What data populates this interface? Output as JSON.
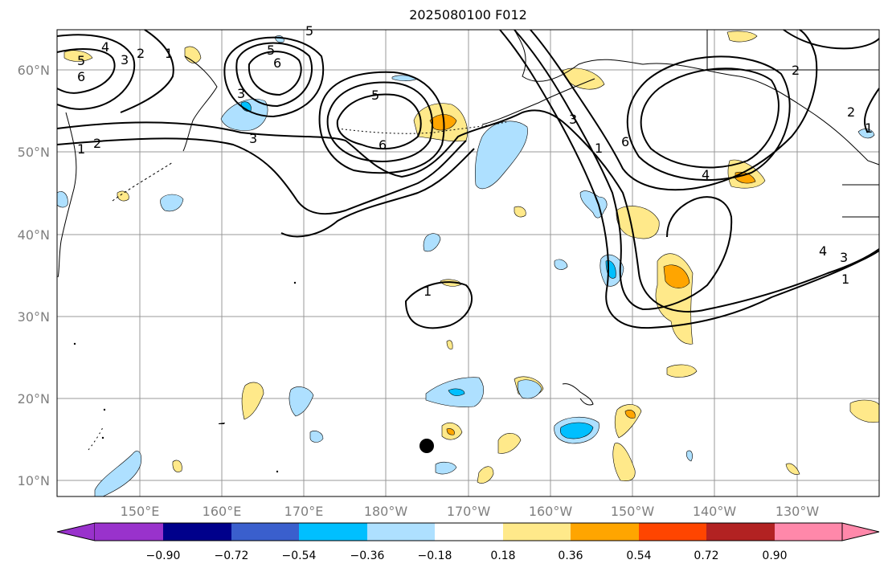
{
  "title": "2025080100 F012",
  "map": {
    "lat_labels": [
      "60°N",
      "50°N",
      "40°N",
      "30°N",
      "20°N",
      "10°N"
    ],
    "lon_labels": [
      "150°E",
      "160°E",
      "170°E",
      "180°W",
      "170°W",
      "160°W",
      "150°W",
      "140°W",
      "130°W"
    ],
    "contour_labels": [
      "5",
      "6",
      "4",
      "3",
      "2",
      "1",
      "1",
      "2",
      "3",
      "6",
      "5",
      "5",
      "3",
      "6",
      "1",
      "3",
      "5",
      "6",
      "4",
      "2",
      "2",
      "1",
      "4",
      "3",
      "1",
      "1"
    ],
    "colors": {
      "neg_light": "#aee0ff",
      "neg_mid": "#00bfff",
      "pos_light": "#ffe98a",
      "pos_mid": "#ffa500"
    }
  },
  "colorbar": {
    "ticks": [
      "−0.90",
      "−0.72",
      "−0.54",
      "−0.36",
      "−0.18",
      "0.18",
      "0.36",
      "0.54",
      "0.72",
      "0.90"
    ],
    "colors": [
      "#9932cc",
      "#00008b",
      "#3a5fcd",
      "#00bfff",
      "#aee0ff",
      "#ffffff",
      "#ffe98a",
      "#ffa500",
      "#ff4500",
      "#b22222",
      "#ff88aa"
    ]
  }
}
